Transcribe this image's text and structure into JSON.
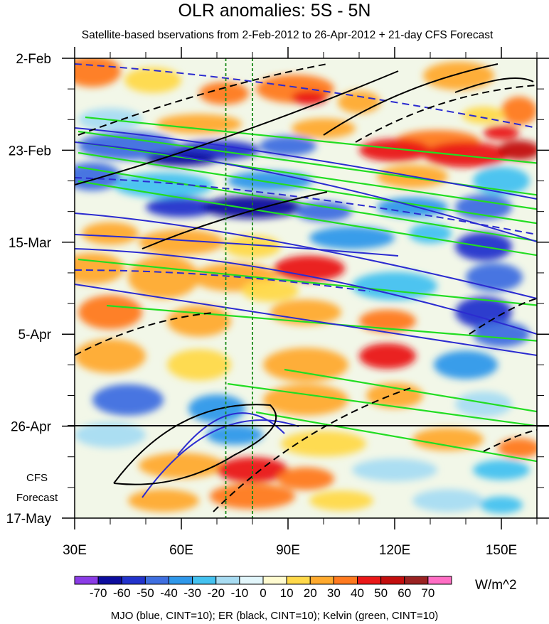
{
  "title": "OLR anomalies: 5S - 5N",
  "subtitle": "Satellite-based bservations from 2-Feb-2012 to 26-Apr-2012 + 21-day CFS Forecast",
  "footer": "MJO (blue, CINT=10); ER (black, CINT=10); Kelvin (green, CINT=10)",
  "units": "W/m^2",
  "forecast_label_line1": "CFS",
  "forecast_label_line2": "Forecast",
  "chart_data": {
    "type": "heatmap",
    "x_ticks": [
      "30E",
      "60E",
      "90E",
      "120E",
      "150E"
    ],
    "x_tick_values": [
      30,
      60,
      90,
      120,
      150
    ],
    "xlim": [
      30,
      160
    ],
    "y_ticks": [
      "2-Feb",
      "23-Feb",
      "15-Mar",
      "5-Apr",
      "26-Apr",
      "17-May"
    ],
    "y_tick_days": [
      0,
      21,
      42,
      63,
      84,
      105
    ],
    "ylim_days": [
      0,
      105
    ],
    "forecast_start_day": 84,
    "reference_longitudes": [
      72.5,
      80
    ],
    "colorbar_labels": [
      "-70",
      "-60",
      "-50",
      "-40",
      "-30",
      "-20",
      "-10",
      "0",
      "10",
      "20",
      "30",
      "40",
      "50",
      "60",
      "70"
    ],
    "colorbar_colors": [
      "#8b3ce6",
      "#0d0d9e",
      "#2233cc",
      "#3f6fe0",
      "#2f98ea",
      "#44c2f0",
      "#a8dcf2",
      "#e2f6fb",
      "#fffbd0",
      "#ffd94a",
      "#ffaa2e",
      "#ff7a1f",
      "#ea1818",
      "#c30e0e",
      "#9a2222",
      "#ff6ec4"
    ],
    "colors": {
      "mjo": "#2b2bd0",
      "er": "#000000",
      "kelvin": "#22dd22",
      "reference": "#1a8a1a"
    }
  }
}
